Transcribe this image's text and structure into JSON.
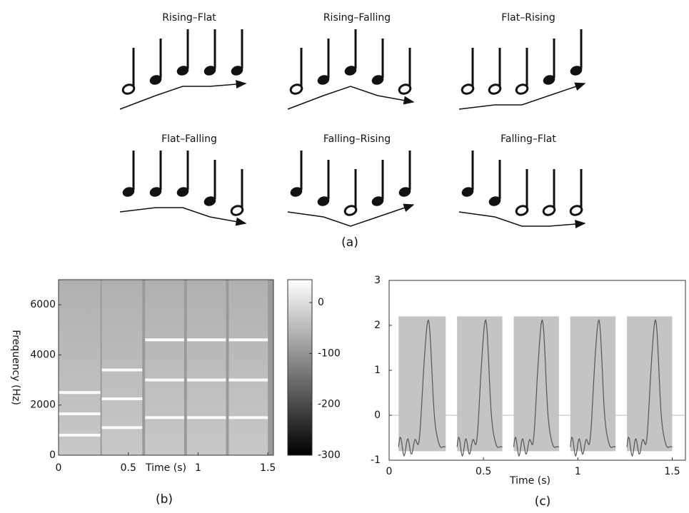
{
  "panel_a": {
    "caption": "(a)",
    "patterns": [
      {
        "label": "Rising–Flat"
      },
      {
        "label": "Rising–Falling"
      },
      {
        "label": "Flat–Rising"
      },
      {
        "label": "Flat–Falling"
      },
      {
        "label": "Falling–Rising"
      },
      {
        "label": "Falling–Flat"
      }
    ]
  },
  "chart_data": [
    {
      "type": "heatmap",
      "caption": "(b)",
      "xlabel": "Time (s)",
      "ylabel": "Frequency (Hz)",
      "xlim": [
        0,
        1.54
      ],
      "xticks": [
        0,
        0.5,
        1,
        1.5
      ],
      "ylim": [
        0,
        7000
      ],
      "yticks": [
        0,
        2000,
        4000,
        6000
      ],
      "segments": [
        {
          "x": [
            0,
            0.3
          ],
          "harmonics": [
            800,
            1650,
            2500
          ]
        },
        {
          "x": [
            0.31,
            0.6
          ],
          "harmonics": [
            1100,
            2250,
            3400
          ]
        },
        {
          "x": [
            0.62,
            0.9
          ],
          "harmonics": [
            1500,
            3000,
            4600
          ]
        },
        {
          "x": [
            0.92,
            1.2
          ],
          "harmonics": [
            1500,
            3000,
            4600
          ]
        },
        {
          "x": [
            1.22,
            1.5
          ],
          "harmonics": [
            1500,
            3000,
            4600
          ]
        }
      ],
      "colorbar": {
        "lim": [
          -300,
          45
        ],
        "ticks": [
          0,
          -100,
          -200,
          -300
        ]
      }
    },
    {
      "type": "waveform",
      "caption": "(c)",
      "xlabel": "Time (s)",
      "xlim": [
        0,
        1.57
      ],
      "xticks": [
        0,
        0.5,
        1,
        1.5
      ],
      "ylim": [
        -1,
        3
      ],
      "yticks": [
        -1,
        0,
        1,
        2,
        3
      ],
      "segments": [
        {
          "x": [
            0.05,
            0.3
          ],
          "range": [
            -0.8,
            2.2
          ]
        },
        {
          "x": [
            0.36,
            0.6
          ],
          "range": [
            -0.8,
            2.2
          ]
        },
        {
          "x": [
            0.66,
            0.9
          ],
          "range": [
            -0.8,
            2.2
          ]
        },
        {
          "x": [
            0.96,
            1.2
          ],
          "range": [
            -0.8,
            2.2
          ]
        },
        {
          "x": [
            1.26,
            1.5
          ],
          "range": [
            -0.8,
            2.2
          ]
        }
      ]
    }
  ]
}
